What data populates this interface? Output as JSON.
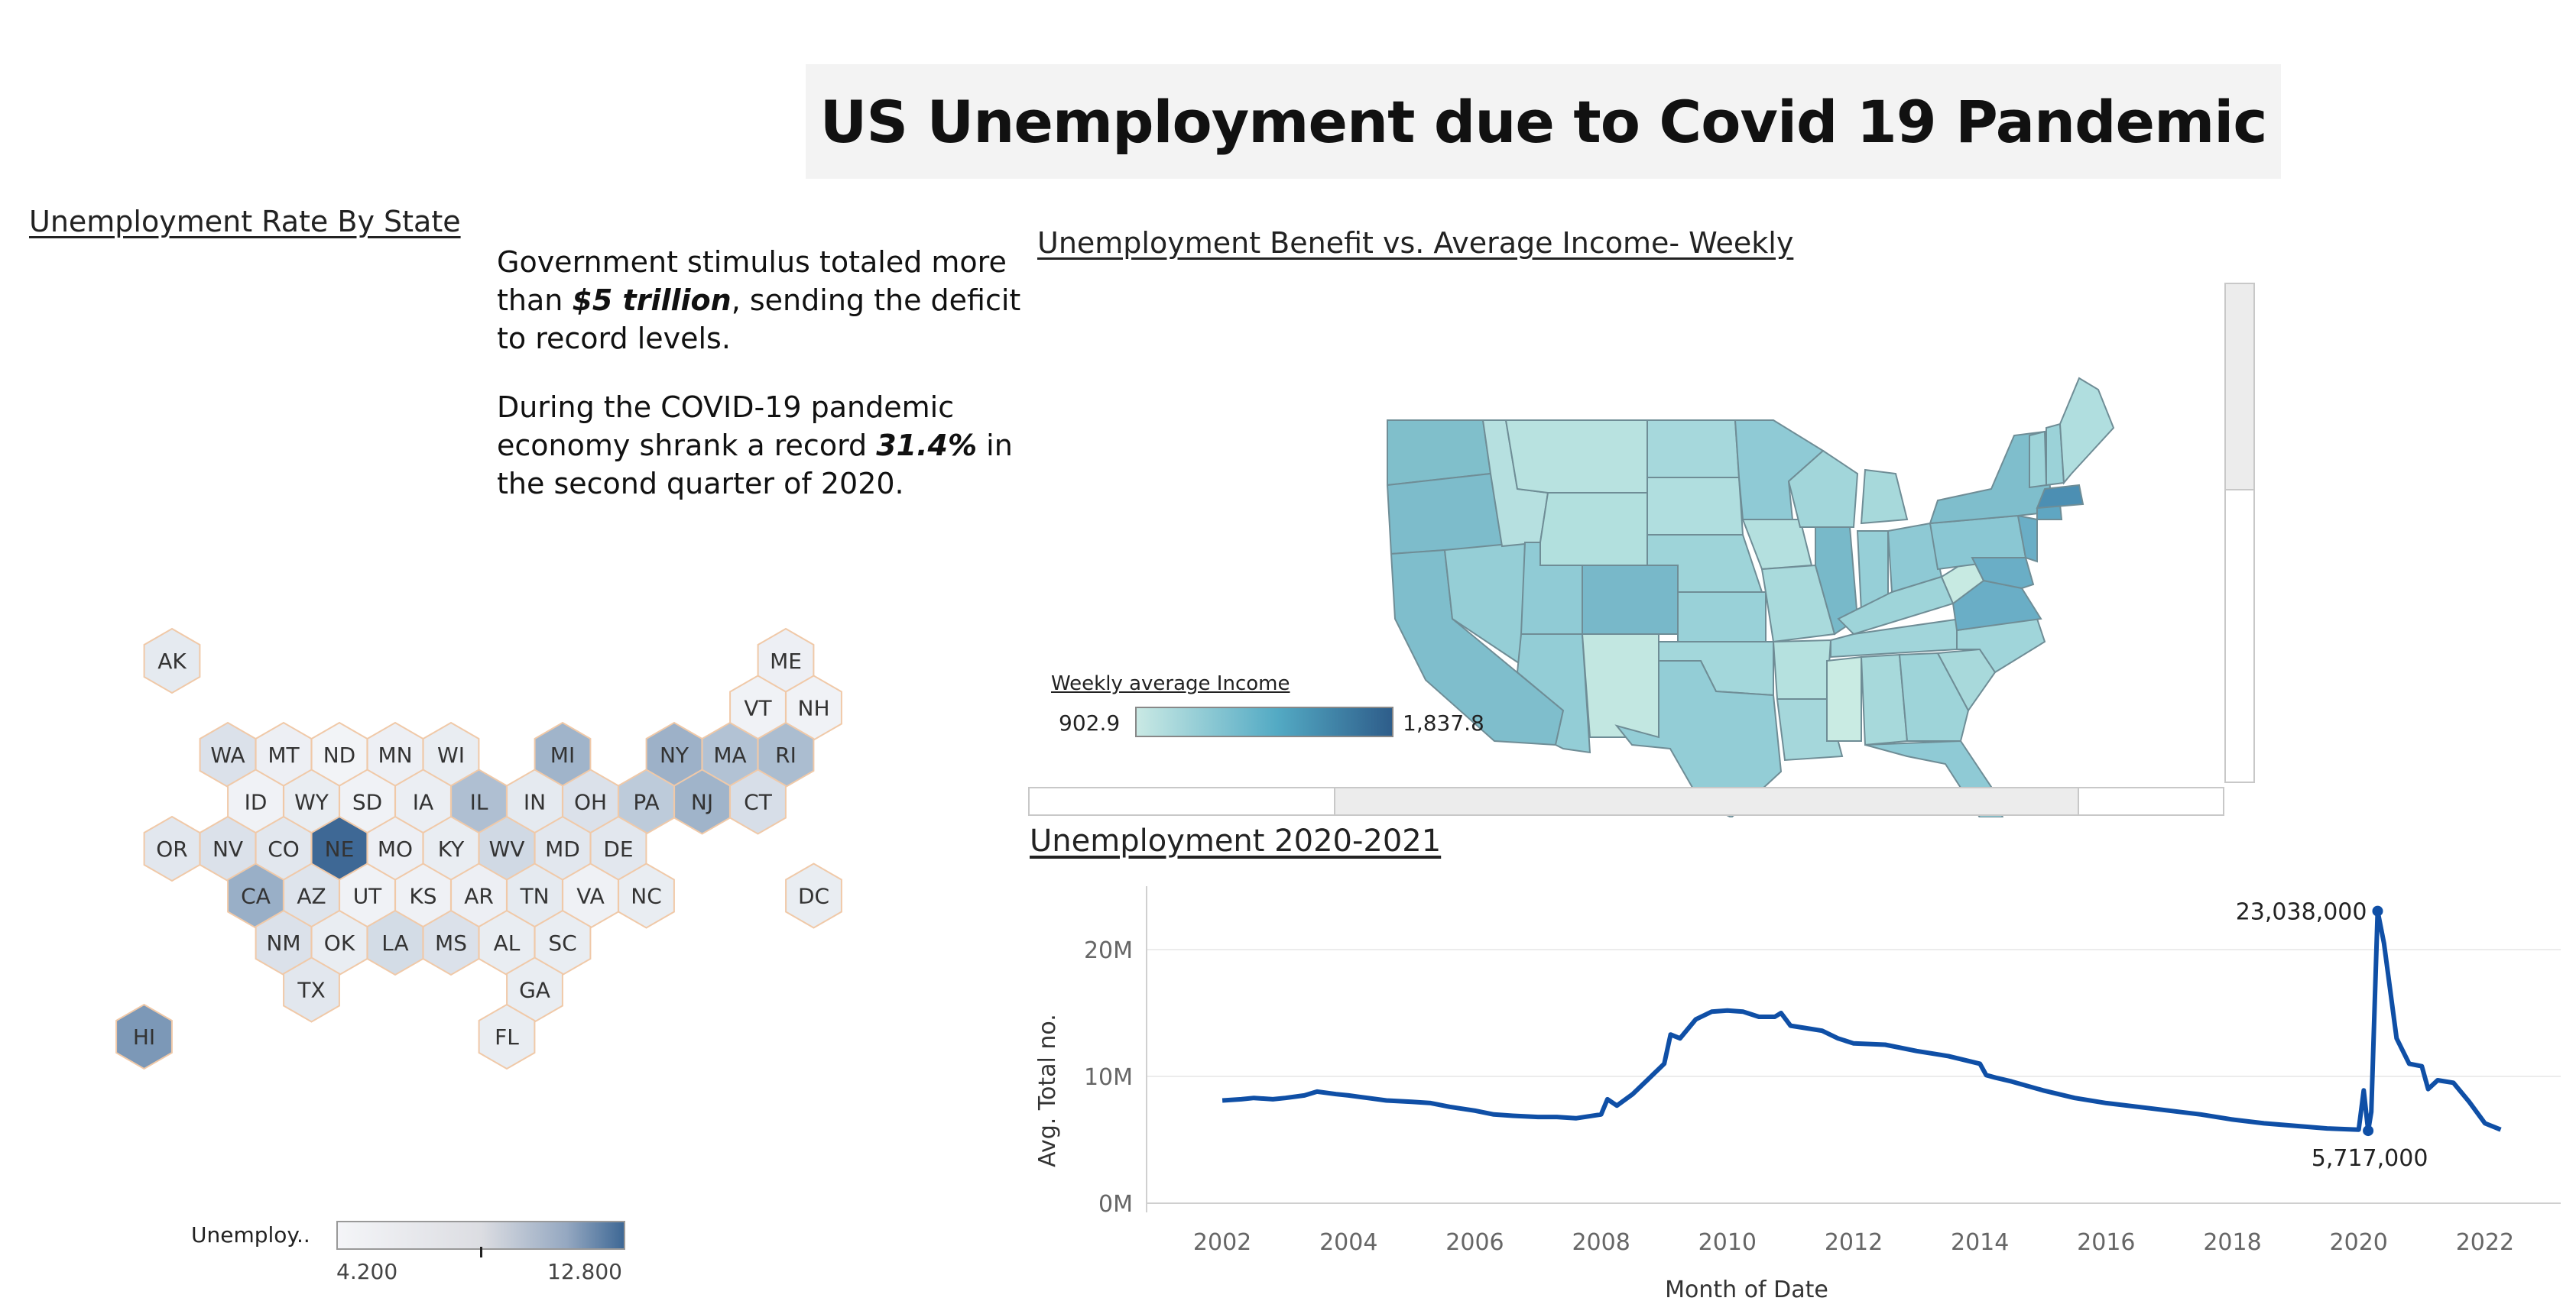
{
  "title": "US Unemployment due to Covid 19 Pandemic",
  "hex_section": {
    "title": "Unemployment Rate By State",
    "legend": {
      "label": "Unemploy..",
      "min": "4.200",
      "max": "12.800",
      "color_low": "#f4f5f8",
      "color_high": "#3e6895"
    },
    "states": [
      {
        "abbr": "AK",
        "shade": 0.08
      },
      {
        "abbr": "ME",
        "shade": 0.04
      },
      {
        "abbr": "VT",
        "shade": 0.02
      },
      {
        "abbr": "NH",
        "shade": 0.02
      },
      {
        "abbr": "WA",
        "shade": 0.14
      },
      {
        "abbr": "MT",
        "shade": 0.04
      },
      {
        "abbr": "ND",
        "shade": 0.01
      },
      {
        "abbr": "MN",
        "shade": 0.04
      },
      {
        "abbr": "WI",
        "shade": 0.06
      },
      {
        "abbr": "MI",
        "shade": 0.46
      },
      {
        "abbr": "NY",
        "shade": 0.48
      },
      {
        "abbr": "MA",
        "shade": 0.36
      },
      {
        "abbr": "RI",
        "shade": 0.4
      },
      {
        "abbr": "ID",
        "shade": 0.02
      },
      {
        "abbr": "WY",
        "shade": 0.06
      },
      {
        "abbr": "SD",
        "shade": 0.02
      },
      {
        "abbr": "IA",
        "shade": 0.05
      },
      {
        "abbr": "IL",
        "shade": 0.38
      },
      {
        "abbr": "IN",
        "shade": 0.08
      },
      {
        "abbr": "OH",
        "shade": 0.14
      },
      {
        "abbr": "PA",
        "shade": 0.3
      },
      {
        "abbr": "NJ",
        "shade": 0.46
      },
      {
        "abbr": "CT",
        "shade": 0.16
      },
      {
        "abbr": "OR",
        "shade": 0.1
      },
      {
        "abbr": "NV",
        "shade": 0.14
      },
      {
        "abbr": "CO",
        "shade": 0.1
      },
      {
        "abbr": "NE",
        "shade": 1.0
      },
      {
        "abbr": "MO",
        "shade": 0.04
      },
      {
        "abbr": "KY",
        "shade": 0.06
      },
      {
        "abbr": "WV",
        "shade": 0.2
      },
      {
        "abbr": "MD",
        "shade": 0.1
      },
      {
        "abbr": "DE",
        "shade": 0.1
      },
      {
        "abbr": "CA",
        "shade": 0.5
      },
      {
        "abbr": "AZ",
        "shade": 0.12
      },
      {
        "abbr": "UT",
        "shade": 0.02
      },
      {
        "abbr": "KS",
        "shade": 0.03
      },
      {
        "abbr": "AR",
        "shade": 0.04
      },
      {
        "abbr": "TN",
        "shade": 0.08
      },
      {
        "abbr": "VA",
        "shade": 0.03
      },
      {
        "abbr": "NC",
        "shade": 0.06
      },
      {
        "abbr": "DC",
        "shade": 0.06
      },
      {
        "abbr": "NM",
        "shade": 0.14
      },
      {
        "abbr": "OK",
        "shade": 0.06
      },
      {
        "abbr": "LA",
        "shade": 0.18
      },
      {
        "abbr": "MS",
        "shade": 0.14
      },
      {
        "abbr": "AL",
        "shade": 0.06
      },
      {
        "abbr": "SC",
        "shade": 0.06
      },
      {
        "abbr": "TX",
        "shade": 0.1
      },
      {
        "abbr": "GA",
        "shade": 0.06
      },
      {
        "abbr": "HI",
        "shade": 0.66
      },
      {
        "abbr": "FL",
        "shade": 0.06
      }
    ]
  },
  "notes": {
    "p1_pre": " Government stimulus totaled more than ",
    "p1_bold": "$5 trillion",
    "p1_post": ", sending the deficit to record levels.",
    "p2_pre": " During the COVID-19 pandemic economy shrank a record ",
    "p2_bold": "31.4%",
    "p2_post": " in the second quarter of 2020."
  },
  "map_section": {
    "title": "Unemployment Benefit vs. Average Income- Weekly",
    "legend": {
      "title": "Weekly average Income",
      "min": "902.9",
      "max": "1,837.8",
      "color_low": "#c9e9e4",
      "color_mid": "#53aac4",
      "color_high": "#2e5d8a"
    }
  },
  "line_section": {
    "title": "Unemployment 2020-2021",
    "annotations": {
      "max_label": "23,038,000",
      "min_label": "5,717,000"
    },
    "line_color": "#0f4fa6"
  },
  "chart_data": {
    "type": "line",
    "title": "Unemployment 2020-2021",
    "xlabel": "Month of Date",
    "ylabel": "Avg. Total no.",
    "x_ticks": [
      "2002",
      "2004",
      "2006",
      "2008",
      "2010",
      "2012",
      "2014",
      "2016",
      "2018",
      "2020",
      "2022"
    ],
    "y_ticks": [
      "0M",
      "10M",
      "20M"
    ],
    "ylim": [
      0,
      25000000
    ],
    "xlim": [
      2000.8,
      2023.2
    ],
    "grid": "horizontal",
    "series": [
      {
        "values": [
          [
            2002.0,
            8100000
          ],
          [
            2002.3,
            8200000
          ],
          [
            2002.5,
            8300000
          ],
          [
            2002.8,
            8200000
          ],
          [
            2003.0,
            8300000
          ],
          [
            2003.3,
            8500000
          ],
          [
            2003.5,
            8800000
          ],
          [
            2003.8,
            8600000
          ],
          [
            2004.0,
            8500000
          ],
          [
            2004.3,
            8300000
          ],
          [
            2004.6,
            8100000
          ],
          [
            2005.0,
            8000000
          ],
          [
            2005.3,
            7900000
          ],
          [
            2005.6,
            7600000
          ],
          [
            2006.0,
            7300000
          ],
          [
            2006.3,
            7000000
          ],
          [
            2006.6,
            6900000
          ],
          [
            2007.0,
            6800000
          ],
          [
            2007.3,
            6800000
          ],
          [
            2007.6,
            6700000
          ],
          [
            2008.0,
            7000000
          ],
          [
            2008.1,
            8200000
          ],
          [
            2008.25,
            7700000
          ],
          [
            2008.5,
            8600000
          ],
          [
            2008.75,
            9800000
          ],
          [
            2009.0,
            11000000
          ],
          [
            2009.1,
            13300000
          ],
          [
            2009.25,
            13000000
          ],
          [
            2009.5,
            14500000
          ],
          [
            2009.75,
            15100000
          ],
          [
            2010.0,
            15200000
          ],
          [
            2010.25,
            15100000
          ],
          [
            2010.5,
            14700000
          ],
          [
            2010.75,
            14700000
          ],
          [
            2010.85,
            15000000
          ],
          [
            2011.0,
            14000000
          ],
          [
            2011.25,
            13800000
          ],
          [
            2011.5,
            13600000
          ],
          [
            2011.75,
            13000000
          ],
          [
            2012.0,
            12600000
          ],
          [
            2012.5,
            12500000
          ],
          [
            2013.0,
            12000000
          ],
          [
            2013.5,
            11600000
          ],
          [
            2014.0,
            11000000
          ],
          [
            2014.1,
            10100000
          ],
          [
            2014.25,
            9900000
          ],
          [
            2014.5,
            9600000
          ],
          [
            2015.0,
            8900000
          ],
          [
            2015.5,
            8300000
          ],
          [
            2016.0,
            7900000
          ],
          [
            2016.5,
            7600000
          ],
          [
            2017.0,
            7300000
          ],
          [
            2017.5,
            7000000
          ],
          [
            2018.0,
            6600000
          ],
          [
            2018.5,
            6300000
          ],
          [
            2019.0,
            6100000
          ],
          [
            2019.5,
            5900000
          ],
          [
            2020.0,
            5800000
          ],
          [
            2020.08,
            8900000
          ],
          [
            2020.15,
            5717000
          ],
          [
            2020.2,
            7200000
          ],
          [
            2020.3,
            23038000
          ],
          [
            2020.4,
            20500000
          ],
          [
            2020.6,
            13000000
          ],
          [
            2020.8,
            11000000
          ],
          [
            2021.0,
            10800000
          ],
          [
            2021.1,
            9000000
          ],
          [
            2021.25,
            9700000
          ],
          [
            2021.5,
            9500000
          ],
          [
            2021.75,
            8000000
          ],
          [
            2022.0,
            6300000
          ],
          [
            2022.25,
            5800000
          ]
        ]
      }
    ]
  }
}
